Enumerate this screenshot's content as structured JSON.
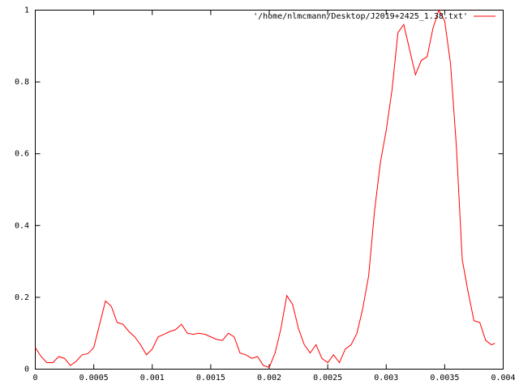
{
  "chart_data": {
    "type": "line",
    "x": [
      0,
      5e-05,
      0.0001,
      0.00015,
      0.0002,
      0.00025,
      0.0003,
      0.00035,
      0.0004,
      0.00045,
      0.0005,
      0.00055,
      0.0006,
      0.00065,
      0.0007,
      0.00075,
      0.0008,
      0.00085,
      0.0009,
      0.00095,
      0.001,
      0.00105,
      0.0011,
      0.00115,
      0.0012,
      0.00125,
      0.0013,
      0.00135,
      0.0014,
      0.00145,
      0.0015,
      0.00155,
      0.0016,
      0.00165,
      0.0017,
      0.00175,
      0.0018,
      0.00185,
      0.0019,
      0.00195,
      0.002,
      0.00205,
      0.0021,
      0.00215,
      0.0022,
      0.00225,
      0.0023,
      0.00235,
      0.0024,
      0.00245,
      0.0025,
      0.00255,
      0.0026,
      0.00265,
      0.0027,
      0.00275,
      0.0028,
      0.00285,
      0.0029,
      0.00295,
      0.003,
      0.00305,
      0.0031,
      0.00315,
      0.0032,
      0.00325,
      0.0033,
      0.00335,
      0.0034,
      0.00345,
      0.0035,
      0.00355,
      0.0036,
      0.00365,
      0.0037,
      0.00375,
      0.0038,
      0.00385,
      0.0039,
      0.00393
    ],
    "series": [
      {
        "name": "'/home/nlmcmann/Desktop/J2019+2425_1.38.txt'",
        "color": "#ff0000",
        "values": [
          0.06,
          0.035,
          0.018,
          0.018,
          0.035,
          0.03,
          0.01,
          0.022,
          0.04,
          0.043,
          0.06,
          0.125,
          0.19,
          0.175,
          0.13,
          0.125,
          0.105,
          0.09,
          0.068,
          0.04,
          0.056,
          0.09,
          0.097,
          0.105,
          0.11,
          0.125,
          0.1,
          0.097,
          0.1,
          0.097,
          0.09,
          0.083,
          0.08,
          0.1,
          0.09,
          0.045,
          0.04,
          0.03,
          0.035,
          0.01,
          0.005,
          0.045,
          0.113,
          0.205,
          0.18,
          0.113,
          0.068,
          0.045,
          0.068,
          0.03,
          0.018,
          0.04,
          0.018,
          0.056,
          0.068,
          0.1,
          0.17,
          0.26,
          0.44,
          0.575,
          0.665,
          0.778,
          0.937,
          0.96,
          0.89,
          0.82,
          0.86,
          0.87,
          0.95,
          1.0,
          0.97,
          0.85,
          0.62,
          0.305,
          0.215,
          0.135,
          0.13,
          0.08,
          0.068,
          0.072
        ]
      }
    ],
    "xlim": [
      0,
      0.004
    ],
    "xticks": [
      0,
      0.0005,
      0.001,
      0.0015,
      0.002,
      0.0025,
      0.003,
      0.0035,
      0.004
    ],
    "ylim": [
      0,
      1
    ],
    "yticks": [
      0,
      0.2,
      0.4,
      0.6,
      0.8,
      1
    ],
    "legend": "top right",
    "grid": false
  }
}
